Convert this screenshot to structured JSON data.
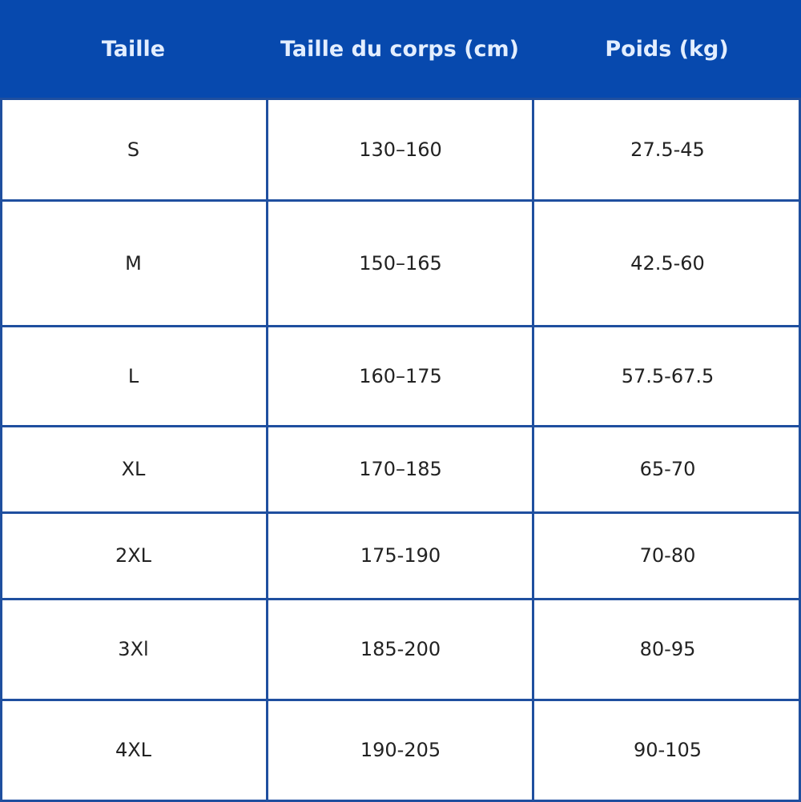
{
  "table": {
    "headers": [
      "Taille",
      "Taille du corps (cm)",
      "Poids (kg)"
    ],
    "rows": [
      [
        "S",
        "130–160",
        "27.5-45"
      ],
      [
        "M",
        "150–165",
        "42.5-60"
      ],
      [
        "L",
        "160–175",
        "57.5-67.5"
      ],
      [
        "XL",
        "170–185",
        "65-70"
      ],
      [
        "2XL",
        "175-190",
        "70-80"
      ],
      [
        "3Xl",
        "185-200",
        "80-95"
      ],
      [
        "4XL",
        "190-205",
        "90-105"
      ]
    ]
  },
  "colors": {
    "header_bg": "#0749ae",
    "border": "#1f4f9f",
    "header_text": "#e3eeff"
  }
}
